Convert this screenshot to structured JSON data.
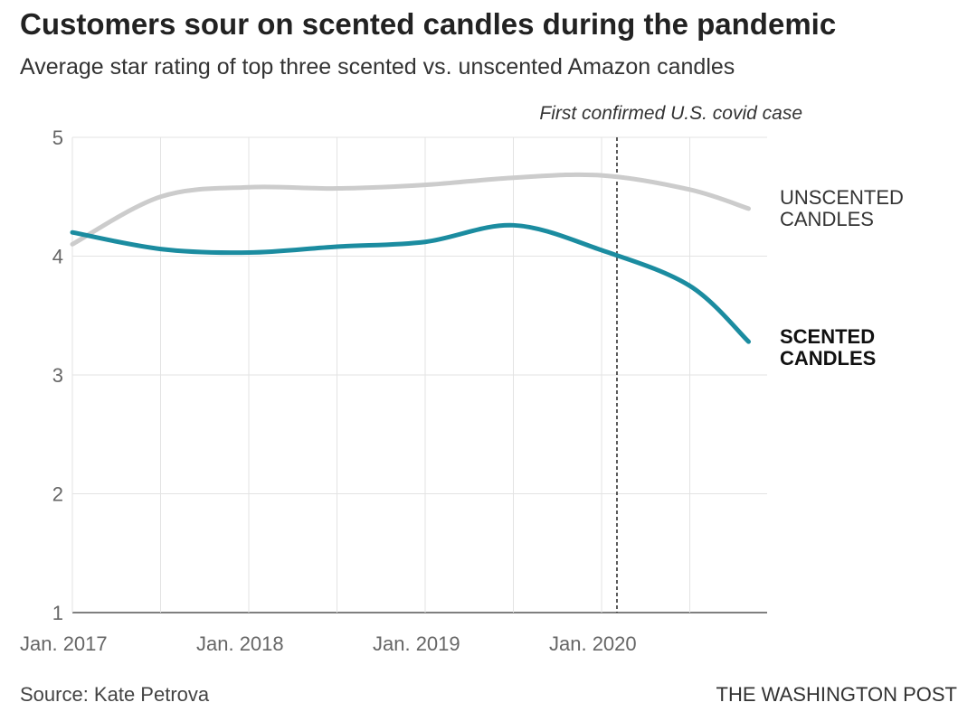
{
  "header": {
    "title": "Customers sour on scented candles during the pandemic",
    "subtitle": "Average star rating of top three scented vs. unscented Amazon candles"
  },
  "footer": {
    "source": "Source: Kate Petrova",
    "publisher": "THE WASHINGTON POST"
  },
  "chart_data": {
    "type": "line",
    "title": "Customers sour on scented candles during the pandemic",
    "subtitle": "Average star rating of top three scented vs. unscented Amazon candles",
    "xlabel": "",
    "ylabel": "",
    "ylim": [
      1,
      5
    ],
    "yticks": [
      1,
      2,
      3,
      4,
      5
    ],
    "xticks": [
      "Jan. 2017",
      "Jan. 2018",
      "Jan. 2019",
      "Jan. 2020"
    ],
    "grid": true,
    "legend": "direct labels at right end of lines",
    "x": [
      "2017-01",
      "2017-07",
      "2018-01",
      "2018-07",
      "2019-01",
      "2019-07",
      "2020-01",
      "2020-07",
      "2020-11"
    ],
    "series": [
      {
        "name": "UNSCENTED CANDLES",
        "color": "#cccccc",
        "label_weight": "normal",
        "label_color": "#333333",
        "values": [
          4.1,
          4.5,
          4.58,
          4.57,
          4.6,
          4.66,
          4.68,
          4.56,
          4.4
        ]
      },
      {
        "name": "SCENTED CANDLES",
        "color": "#1b8ca0",
        "label_weight": "bold",
        "label_color": "#111111",
        "values": [
          4.2,
          4.06,
          4.03,
          4.08,
          4.12,
          4.26,
          4.05,
          3.75,
          3.28
        ]
      }
    ],
    "annotations": [
      {
        "x": "2020-01",
        "text": "First confirmed U.S. covid case",
        "style": "dashed vertical line"
      }
    ]
  }
}
